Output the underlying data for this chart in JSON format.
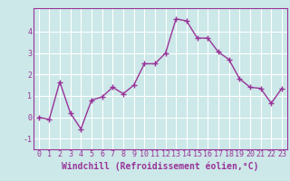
{
  "x": [
    0,
    1,
    2,
    3,
    4,
    5,
    6,
    7,
    8,
    9,
    10,
    11,
    12,
    13,
    14,
    15,
    16,
    17,
    18,
    19,
    20,
    21,
    22,
    23
  ],
  "y": [
    0.0,
    -0.1,
    1.65,
    0.2,
    -0.55,
    0.8,
    0.95,
    1.4,
    1.1,
    1.5,
    2.5,
    2.5,
    3.0,
    4.6,
    4.5,
    3.7,
    3.7,
    3.05,
    2.7,
    1.8,
    1.4,
    1.35,
    0.65,
    1.35
  ],
  "line_color": "#993399",
  "marker": "+",
  "marker_size": 4,
  "bg_color": "#cce8e8",
  "grid_color": "#ffffff",
  "xlabel": "Windchill (Refroidissement éolien,°C)",
  "xlabel_fontsize": 7,
  "tick_fontsize": 6,
  "ylabel_ticks": [
    -1,
    0,
    1,
    2,
    3,
    4
  ],
  "ylim": [
    -1.5,
    5.1
  ],
  "xlim": [
    -0.5,
    23.5
  ],
  "linewidth": 1.0
}
